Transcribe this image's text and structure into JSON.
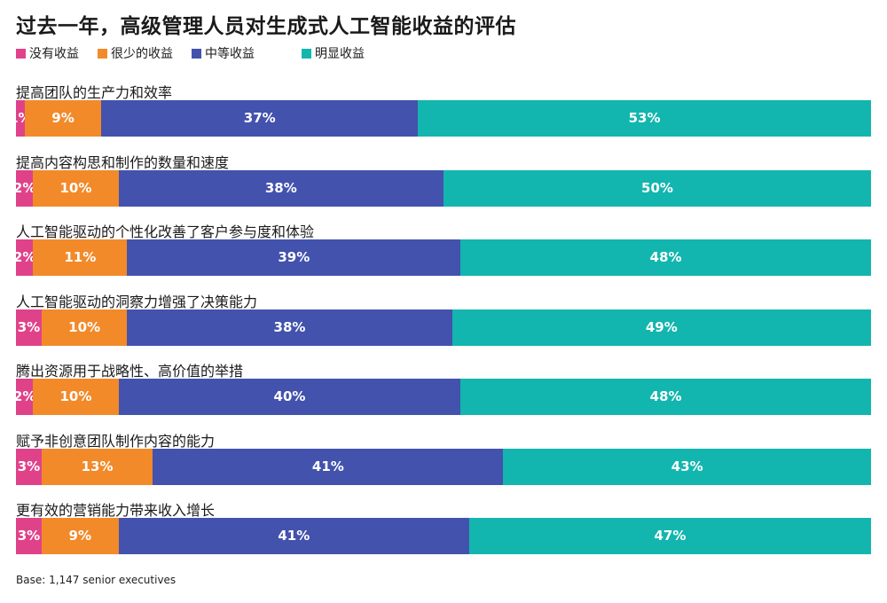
{
  "title": "过去一年，高级管理人员对生成式人工智能收益的评估",
  "source": "Base: 1,147 senior executives",
  "chart_data": {
    "type": "bar",
    "orientation": "horizontal",
    "stacked": true,
    "categories": [
      "提高团队的生产力和效率",
      "提高内容构思和制作的数量和速度",
      "人工智能驱动的个性化改善了客户参与度和体验",
      "人工智能驱动的洞察力增强了决策能力",
      "腾出资源用于战略性、高价值的举措",
      "赋予非创意团队制作内容的能力",
      "更有效的营销能力带来收入增长"
    ],
    "series": [
      {
        "name": "没有收益",
        "color": "#e0428a",
        "values": [
          1,
          2,
          2,
          3,
          2,
          3,
          3
        ]
      },
      {
        "name": "很少的收益",
        "color": "#f28a2a",
        "values": [
          9,
          10,
          11,
          10,
          10,
          13,
          9
        ]
      },
      {
        "name": "中等收益",
        "color": "#4352ad",
        "values": [
          37,
          38,
          39,
          38,
          40,
          41,
          41
        ]
      },
      {
        "name": "明显收益",
        "color": "#13b6ae",
        "values": [
          53,
          50,
          48,
          49,
          48,
          43,
          47
        ]
      }
    ],
    "value_suffix": "%",
    "legend_position": "top-left",
    "grid": false
  }
}
